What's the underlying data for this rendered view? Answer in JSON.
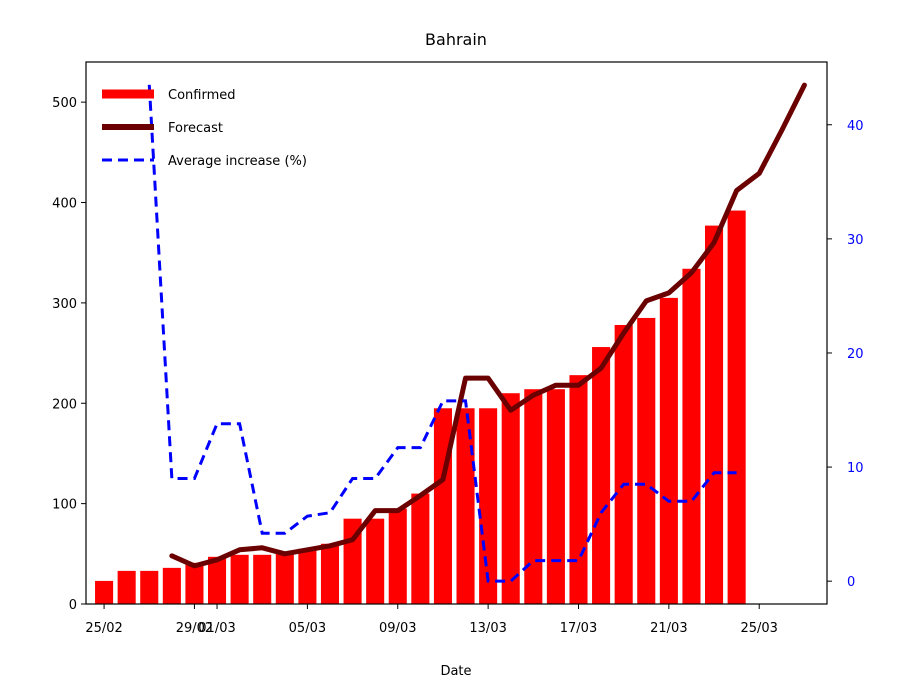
{
  "chart_data": {
    "type": "bar",
    "title": "Bahrain",
    "xlabel": "Date",
    "ylabel": "",
    "ylabel_right": "",
    "ylim": [
      0,
      540
    ],
    "ylim_right": [
      -2,
      45.5
    ],
    "xlim": [
      -0.8,
      32.0
    ],
    "yticks": [
      0,
      100,
      200,
      300,
      400,
      500
    ],
    "yticks_right": [
      0,
      10,
      20,
      30,
      40
    ],
    "xticks": [
      {
        "x": 0,
        "label": "25/02"
      },
      {
        "x": 4,
        "label": "29/02"
      },
      {
        "x": 5,
        "label": "01/03"
      },
      {
        "x": 9,
        "label": "05/03"
      },
      {
        "x": 13,
        "label": "09/03"
      },
      {
        "x": 17,
        "label": "13/03"
      },
      {
        "x": 21,
        "label": "17/03"
      },
      {
        "x": 25,
        "label": "21/03"
      },
      {
        "x": 29,
        "label": "25/03"
      }
    ],
    "legend_position": "top-left",
    "colors": {
      "confirmed": "#ff0000",
      "forecast": "#6b0000",
      "average": "#0000ff"
    },
    "series": [
      {
        "name": "Confirmed",
        "kind": "bar",
        "axis": "left",
        "x": [
          0,
          1,
          2,
          3,
          4,
          5,
          6,
          7,
          8,
          9,
          10,
          11,
          12,
          13,
          14,
          15,
          16,
          17,
          18,
          19,
          20,
          21,
          22,
          23,
          24,
          25,
          26,
          27,
          28
        ],
        "values": [
          23,
          33,
          33,
          36,
          41,
          47,
          49,
          49,
          52,
          55,
          60,
          85,
          85,
          95,
          110,
          195,
          195,
          195,
          210,
          214,
          214,
          228,
          256,
          278,
          285,
          305,
          334,
          377,
          392
        ]
      },
      {
        "name": "Forecast",
        "kind": "line",
        "axis": "left",
        "x": [
          3,
          4,
          5,
          6,
          7,
          8,
          9,
          10,
          11,
          12,
          13,
          14,
          15,
          16,
          17,
          18,
          19,
          20,
          21,
          22,
          23,
          24,
          25,
          26,
          27,
          28,
          29,
          30,
          31
        ],
        "values": [
          48,
          38,
          44,
          54,
          56,
          50,
          54,
          58,
          64,
          93,
          93,
          108,
          124,
          225,
          225,
          193,
          208,
          218,
          218,
          235,
          270,
          302,
          310,
          330,
          360,
          412,
          429,
          472,
          517
        ]
      },
      {
        "name": "Average increase (%)",
        "kind": "line",
        "axis": "right",
        "dashed": true,
        "x": [
          2,
          3,
          4,
          5,
          6,
          7,
          8,
          9,
          10,
          11,
          12,
          13,
          14,
          15,
          16,
          17,
          18,
          19,
          20,
          21,
          22,
          23,
          24,
          25,
          26,
          27,
          28
        ],
        "values": [
          43.5,
          9,
          9,
          13.8,
          13.8,
          4.2,
          4.2,
          5.7,
          6,
          9,
          9,
          11.7,
          11.7,
          15.8,
          15.8,
          0,
          0,
          1.8,
          1.8,
          1.8,
          6,
          8.5,
          8.5,
          7,
          7,
          9.5,
          9.5
        ]
      }
    ]
  }
}
